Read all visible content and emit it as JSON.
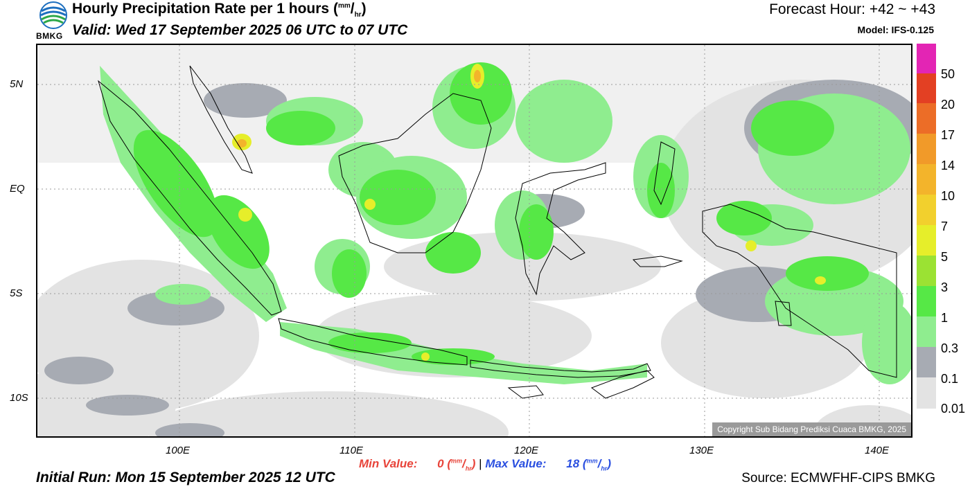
{
  "header": {
    "title": "Hourly Precipitation Rate per 1 hours (mm/hr)",
    "title_main": "Hourly Precipitation Rate per 1 hours",
    "title_unit_top": "mm",
    "title_unit_bottom": "hr",
    "valid": "Valid: Wed 17 September 2025 06 UTC to 07 UTC",
    "forecast_hour": "Forecast Hour: +42 ~ +43",
    "model": "Model: IFS-0.125",
    "logo_text": "BMKG"
  },
  "map": {
    "lat_labels": [
      "5N",
      "EQ",
      "5S",
      "10S"
    ],
    "lon_labels": [
      "100E",
      "110E",
      "120E",
      "130E",
      "140E"
    ],
    "copyright": "Copyright Sub Bidang Prediksi Cuaca BMKG, 2025",
    "colors": {
      "0.01": "#e3e3e3",
      "0.1": "#a7abb3",
      "0.3": "#8fed8f",
      "1": "#56e846",
      "3": "#9be233",
      "5": "#e6ee2a",
      "7": "#f2d02d",
      "10": "#f3b42b",
      "14": "#f19a29",
      "17": "#ec6d27",
      "20": "#e34023",
      "50": "#e325b4"
    }
  },
  "legend": {
    "labels": [
      "50",
      "20",
      "17",
      "14",
      "10",
      "7",
      "5",
      "3",
      "1",
      "0.3",
      "0.1",
      "0.01"
    ]
  },
  "footer": {
    "min_label": "Min Value:",
    "min_value": "0",
    "max_label": "Max Value:",
    "max_value": "18",
    "unit_top": "mm",
    "unit_bottom": "hr",
    "initial_run": "Initial Run: Mon 15 September 2025 12 UTC",
    "source": "Source: ECMWFHF-CIPS BMKG"
  }
}
